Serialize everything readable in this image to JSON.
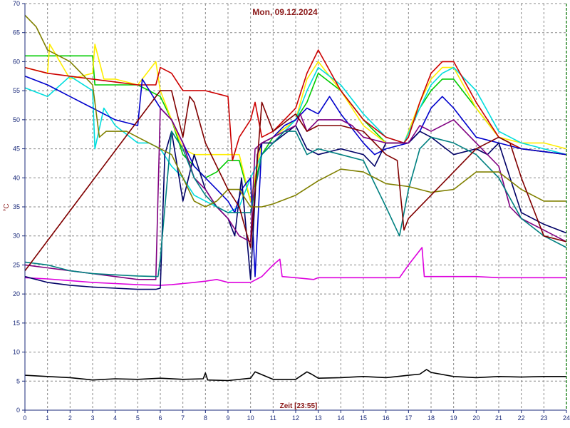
{
  "chart_data": {
    "type": "line",
    "title": "Mon, 09.12.2024",
    "xlabel": "Zeit [23:55]",
    "ylabel": "°C",
    "xlim": [
      0,
      24
    ],
    "ylim": [
      0,
      70
    ],
    "xticks": [
      0,
      1,
      2,
      3,
      4,
      5,
      6,
      7,
      8,
      9,
      10,
      11,
      12,
      13,
      14,
      15,
      16,
      17,
      18,
      19,
      20,
      21,
      22,
      23,
      24
    ],
    "yticks": [
      0,
      5,
      10,
      15,
      20,
      25,
      30,
      35,
      40,
      45,
      50,
      55,
      60,
      65,
      70
    ],
    "grid": true,
    "axis_colors": {
      "x_axis": "#1a2a7a",
      "y_axis": "#1a2a7a",
      "right_border": "#2e8b2e"
    },
    "series": [
      {
        "color": "#000000",
        "x": [
          0,
          1,
          2,
          3,
          4,
          5,
          6,
          7,
          7.9,
          8,
          8.1,
          9,
          10,
          10.2,
          11,
          12,
          12.5,
          12.7,
          13,
          14,
          15,
          16,
          16.5,
          17,
          17.5,
          17.8,
          18,
          19,
          20,
          21,
          22,
          23,
          24
        ],
        "y": [
          6,
          5.8,
          5.6,
          5.2,
          5.4,
          5.3,
          5.5,
          5.3,
          5.4,
          6.4,
          5.2,
          5.1,
          5.5,
          6.6,
          5.3,
          5.3,
          6.6,
          6.2,
          5.5,
          5.6,
          5.8,
          5.6,
          5.8,
          6,
          6.2,
          7,
          6.5,
          5.8,
          5.6,
          5.8,
          5.7,
          5.8,
          5.8
        ]
      },
      {
        "color": "#dd00dd",
        "x": [
          0,
          1,
          2,
          3,
          4,
          5,
          6,
          6.5,
          7,
          7.5,
          8,
          8.5,
          9,
          10,
          10.5,
          11,
          11.3,
          11.4,
          12,
          12.8,
          13,
          14,
          15,
          16,
          16.6,
          17,
          17.6,
          17.7,
          18,
          19,
          20,
          21,
          22,
          23,
          24
        ],
        "y": [
          22.8,
          22.6,
          22.3,
          22,
          21.8,
          21.6,
          21.5,
          21.6,
          21.8,
          22,
          22.2,
          22.5,
          22,
          22,
          23,
          25,
          26,
          23,
          22.8,
          22.5,
          22.8,
          22.8,
          22.8,
          22.8,
          22.8,
          25,
          28,
          23,
          23,
          23,
          23,
          22.8,
          22.8,
          22.8,
          22.8
        ]
      },
      {
        "color": "#00cc00",
        "x": [
          0,
          1,
          2,
          3,
          3.1,
          3.5,
          4,
          5,
          5.5,
          6,
          6.5,
          7,
          7.5,
          8,
          8.5,
          9,
          9.5,
          10,
          10.5,
          11,
          12,
          12.5,
          13,
          14,
          15,
          16,
          16.8,
          17.5,
          18,
          18.5,
          19,
          20,
          21,
          22,
          23,
          24
        ],
        "y": [
          61,
          61,
          61,
          61,
          56,
          56,
          56,
          56,
          55,
          54,
          50,
          44,
          42,
          40,
          41,
          43,
          43,
          36,
          44,
          47,
          50,
          53,
          58,
          55,
          50,
          46,
          46,
          52,
          55,
          57,
          57,
          52,
          47,
          45,
          44.5,
          44
        ]
      },
      {
        "color": "#ffee00",
        "x": [
          0,
          1,
          1.1,
          2,
          3,
          3.1,
          3.5,
          4,
          5,
          5.8,
          6,
          6.5,
          7,
          7.5,
          8,
          9,
          9.5,
          10,
          10.5,
          11,
          12,
          12.5,
          13,
          14,
          15,
          16,
          16.8,
          17.5,
          18,
          18.5,
          19,
          20,
          21,
          22,
          23,
          24
        ],
        "y": [
          59,
          58,
          63,
          57,
          58,
          63,
          57,
          57,
          56,
          60,
          55,
          50,
          45,
          44,
          44,
          44,
          44,
          36,
          46,
          47,
          50,
          57,
          60,
          55,
          49,
          46,
          46,
          53,
          57,
          59,
          59,
          52,
          47,
          46,
          46,
          45
        ]
      },
      {
        "color": "#00dddd",
        "x": [
          0,
          1,
          2,
          3,
          3.1,
          3.5,
          4,
          5,
          5.5,
          6,
          6.5,
          7,
          7.5,
          8,
          8.5,
          9,
          9.5,
          10,
          10.5,
          11,
          12,
          12.5,
          13,
          14,
          15,
          16,
          16.8,
          17.5,
          18,
          18.5,
          19,
          20,
          21,
          22,
          23,
          24
        ],
        "y": [
          55.5,
          54,
          57.5,
          55,
          45,
          52,
          49,
          46,
          46,
          45,
          42,
          40,
          37,
          36,
          35,
          34,
          35,
          40,
          44,
          46,
          50,
          55,
          59,
          56,
          51,
          47,
          46,
          52,
          56,
          58,
          59,
          55,
          48,
          46,
          45,
          44
        ]
      },
      {
        "color": "#cc0000",
        "x": [
          0,
          1,
          2,
          3,
          4,
          5,
          5.8,
          6,
          6.5,
          7,
          7.2,
          8,
          9,
          9.2,
          9.5,
          10,
          10.2,
          10.5,
          11,
          11.5,
          12,
          12.5,
          13,
          14,
          15,
          16,
          16.8,
          17,
          17.5,
          18,
          18.5,
          19,
          20,
          21,
          22,
          23,
          24
        ],
        "y": [
          59,
          58,
          57.5,
          57,
          56.5,
          56,
          56,
          59,
          58,
          55,
          55,
          55,
          54,
          43,
          47,
          50,
          53,
          47,
          48,
          50,
          52,
          58,
          62,
          55,
          50,
          47,
          46,
          47,
          53,
          58,
          60,
          60,
          53,
          47,
          45,
          44.5,
          44
        ]
      },
      {
        "color": "#0000cc",
        "x": [
          0,
          1,
          2,
          3,
          4,
          5,
          5.2,
          6,
          6.5,
          7,
          7.5,
          8,
          8.5,
          9,
          9.3,
          9.6,
          10,
          10.2,
          10.5,
          11,
          11.5,
          12,
          12.5,
          13,
          13.5,
          14,
          15,
          15.5,
          16,
          17,
          17.5,
          18,
          18.5,
          19,
          20,
          21,
          22,
          23,
          24
        ],
        "y": [
          57.5,
          56,
          54,
          52,
          50,
          49,
          57,
          52,
          50,
          46,
          42,
          40,
          38,
          36,
          34,
          38,
          40,
          23,
          46,
          47,
          49,
          50,
          52,
          51,
          54,
          51,
          46,
          44,
          45,
          46,
          48,
          52,
          54,
          52,
          47,
          46,
          45,
          44.5,
          44
        ]
      },
      {
        "color": "#000066",
        "x": [
          0,
          1,
          2,
          3,
          4,
          5,
          5.8,
          6,
          6.2,
          6.5,
          7,
          7.5,
          8,
          8.5,
          9,
          9.3,
          9.6,
          10,
          10.3,
          10.5,
          11,
          12,
          12.5,
          13,
          14,
          15,
          15.5,
          16,
          17,
          17.5,
          18,
          19,
          20,
          20.5,
          21,
          22,
          23,
          24
        ],
        "y": [
          23,
          22,
          21.5,
          21.2,
          21,
          20.8,
          20.8,
          21,
          44,
          48,
          36,
          44,
          38,
          35,
          33,
          30,
          40,
          22.5,
          44,
          46,
          46,
          49,
          45,
          44,
          45,
          44,
          42,
          46,
          46,
          48,
          47,
          44,
          45,
          44,
          46,
          34,
          32,
          30.5
        ]
      },
      {
        "color": "#800080",
        "x": [
          0,
          1,
          2,
          3,
          4,
          5,
          5.8,
          6,
          6.5,
          7,
          7.5,
          8,
          8.5,
          9,
          9.5,
          10,
          10.2,
          10.5,
          11,
          12,
          12.2,
          12.5,
          13,
          14,
          14.5,
          15,
          16,
          17,
          17.5,
          18,
          19,
          20,
          21,
          21.5,
          22,
          23,
          24
        ],
        "y": [
          25,
          24.5,
          24,
          23.5,
          23,
          22.5,
          22.5,
          52,
          50,
          46,
          40,
          38,
          35,
          33,
          30,
          29,
          45,
          46,
          47,
          49,
          51,
          48,
          50,
          50,
          49,
          47,
          46,
          46,
          49,
          48,
          50,
          46,
          42,
          35,
          33,
          31,
          29
        ]
      },
      {
        "color": "#008080",
        "x": [
          0,
          1,
          2,
          3,
          4,
          5,
          5.9,
          6,
          6.5,
          7,
          7.5,
          8,
          8.5,
          9,
          9.5,
          10,
          10.5,
          11,
          11.5,
          12,
          12.5,
          13,
          14,
          15,
          16,
          16.6,
          17,
          17.5,
          18,
          19,
          20,
          21,
          22,
          23,
          24
        ],
        "y": [
          25.5,
          25,
          24,
          23.5,
          23.3,
          23.1,
          23,
          26,
          48,
          45,
          40,
          37,
          35,
          34,
          34,
          34,
          44,
          46,
          48,
          48,
          44,
          45,
          44,
          43,
          35,
          30,
          38,
          45,
          47,
          46,
          44,
          40,
          33,
          30,
          28
        ]
      },
      {
        "color": "#808000",
        "x": [
          0,
          0.5,
          1,
          2,
          3,
          3.3,
          3.6,
          4,
          4.5,
          5,
          6,
          6.5,
          7,
          7.5,
          8,
          8.5,
          9,
          9.5,
          10,
          10.5,
          11,
          12,
          13,
          14,
          15,
          16,
          17,
          18,
          19,
          20,
          21,
          22,
          23,
          24
        ],
        "y": [
          68,
          66,
          62,
          60,
          56,
          47,
          48,
          48,
          48,
          47,
          45,
          44,
          40,
          36,
          35,
          36,
          38,
          38,
          35,
          35,
          35.5,
          37,
          39.5,
          41.5,
          41,
          39,
          38.5,
          37.5,
          38,
          41,
          41,
          38,
          36,
          36
        ]
      },
      {
        "color": "#800000",
        "x": [
          0,
          6,
          6.5,
          7,
          7.3,
          7.5,
          8,
          9,
          9.5,
          10,
          10.5,
          11,
          12,
          12.5,
          13,
          14,
          15,
          16,
          16.5,
          16.8,
          17,
          18,
          19,
          20,
          21,
          21.5,
          22,
          23,
          24
        ],
        "y": [
          24,
          55,
          55,
          47,
          54,
          53,
          46,
          38,
          35,
          28,
          53,
          48,
          51,
          48,
          49,
          49,
          48,
          44,
          43,
          31,
          33,
          37,
          41,
          45,
          47,
          46,
          40,
          30,
          29
        ]
      }
    ]
  }
}
